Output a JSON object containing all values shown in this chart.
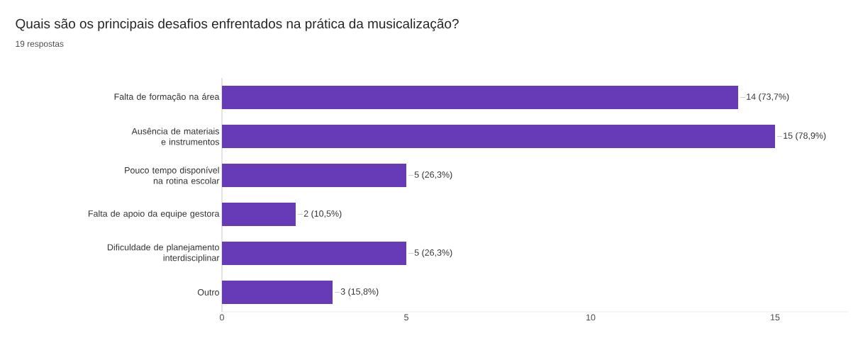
{
  "chart_data": {
    "type": "bar",
    "orientation": "horizontal",
    "title": "Quais são os principais desafios enfrentados na prática da musicalização?",
    "subtitle": "19 respostas",
    "categories": [
      "Falta de formação na área",
      "Ausência de materiais e instrumentos",
      "Pouco tempo disponível na rotina escolar",
      "Falta de apoio da equipe gestora",
      "Dificuldade de planejamento interdisciplinar",
      "Outro"
    ],
    "values": [
      14,
      15,
      5,
      2,
      5,
      3
    ],
    "value_labels": [
      "14 (73,7%)",
      "15 (78,9%)",
      "5 (26,3%)",
      "2 (10,5%)",
      "5 (26,3%)",
      "3 (15,8%)"
    ],
    "color": "#673ab7",
    "xlim": [
      0,
      17
    ],
    "xticks": [
      0,
      5,
      10,
      15
    ],
    "grid": false
  }
}
